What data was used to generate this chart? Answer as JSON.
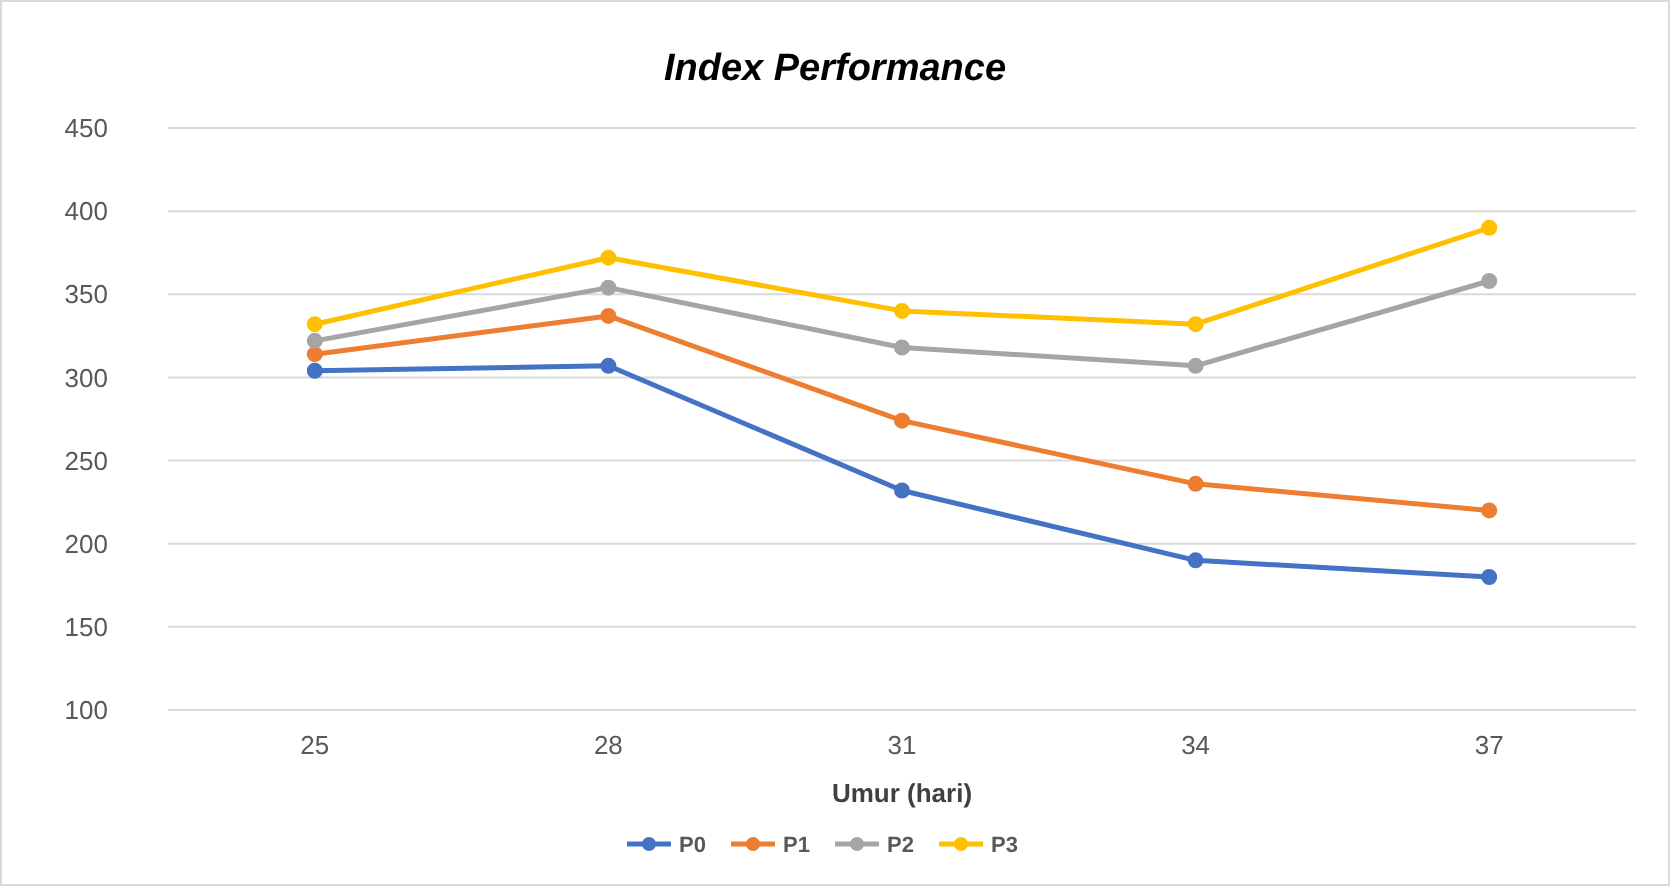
{
  "chart_data": {
    "type": "line",
    "title": "Index Performance",
    "xlabel": "Umur (hari)",
    "categories": [
      "25",
      "28",
      "31",
      "34",
      "37"
    ],
    "series": [
      {
        "name": "P0",
        "color": "#4472c4",
        "values": [
          304,
          307,
          232,
          190,
          180
        ]
      },
      {
        "name": "P1",
        "color": "#ed7d31",
        "values": [
          314,
          337,
          274,
          236,
          220
        ]
      },
      {
        "name": "P2",
        "color": "#a5a5a5",
        "values": [
          322,
          354,
          318,
          307,
          358
        ]
      },
      {
        "name": "P3",
        "color": "#ffc000",
        "values": [
          332,
          372,
          340,
          332,
          390
        ]
      }
    ],
    "ylim": [
      100,
      450
    ],
    "yticks": [
      100,
      150,
      200,
      250,
      300,
      350,
      400,
      450
    ],
    "grid": "y",
    "legend": "bottom",
    "marker": "circle",
    "line_style": "solid"
  }
}
